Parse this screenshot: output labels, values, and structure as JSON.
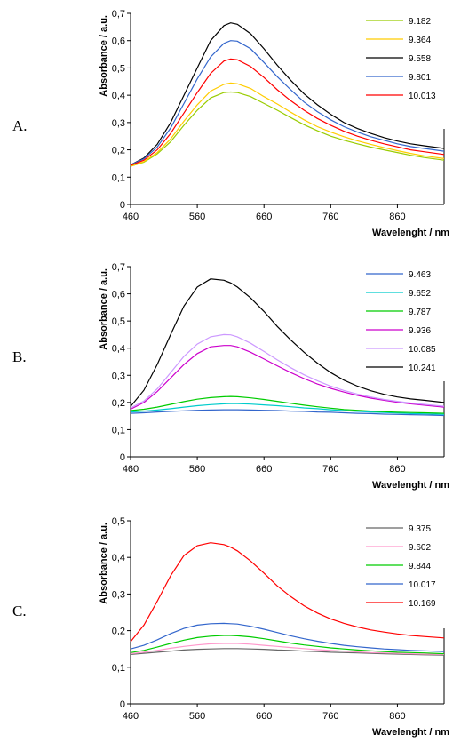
{
  "chart_data": [
    {
      "type": "line",
      "panel_label": "A.",
      "xlabel": "Wavelenght / nm",
      "ylabel": "Absorbance / a.u.",
      "xlim": [
        460,
        930
      ],
      "ylim": [
        0,
        0.7
      ],
      "x_ticks": [
        "460",
        "560",
        "660",
        "760",
        "860"
      ],
      "y_ticks": [
        "0",
        "0,1",
        "0,2",
        "0,3",
        "0,4",
        "0,5",
        "0,6",
        "0,7"
      ],
      "legend_position": "top-right",
      "x": [
        460,
        480,
        500,
        520,
        540,
        560,
        580,
        600,
        610,
        620,
        640,
        660,
        680,
        700,
        720,
        740,
        760,
        780,
        800,
        820,
        840,
        860,
        880,
        900,
        930
      ],
      "series": [
        {
          "name": "9.182",
          "color": "#99cc00",
          "values": [
            0.14,
            0.155,
            0.185,
            0.23,
            0.29,
            0.345,
            0.39,
            0.41,
            0.412,
            0.41,
            0.395,
            0.37,
            0.345,
            0.318,
            0.292,
            0.27,
            0.25,
            0.235,
            0.222,
            0.21,
            0.2,
            0.19,
            0.18,
            0.172,
            0.162
          ]
        },
        {
          "name": "9.364",
          "color": "#ffcc00",
          "values": [
            0.14,
            0.157,
            0.19,
            0.24,
            0.305,
            0.365,
            0.415,
            0.44,
            0.445,
            0.442,
            0.425,
            0.395,
            0.368,
            0.338,
            0.31,
            0.285,
            0.265,
            0.248,
            0.233,
            0.22,
            0.208,
            0.197,
            0.187,
            0.178,
            0.168
          ]
        },
        {
          "name": "9.558",
          "color": "#000000",
          "values": [
            0.145,
            0.17,
            0.22,
            0.3,
            0.4,
            0.5,
            0.6,
            0.655,
            0.665,
            0.66,
            0.625,
            0.57,
            0.51,
            0.455,
            0.405,
            0.365,
            0.33,
            0.3,
            0.278,
            0.26,
            0.245,
            0.232,
            0.222,
            0.215,
            0.205
          ]
        },
        {
          "name": "9.801",
          "color": "#3366cc",
          "values": [
            0.145,
            0.167,
            0.21,
            0.28,
            0.37,
            0.46,
            0.54,
            0.59,
            0.6,
            0.598,
            0.57,
            0.52,
            0.468,
            0.42,
            0.375,
            0.34,
            0.31,
            0.285,
            0.265,
            0.248,
            0.235,
            0.222,
            0.212,
            0.205,
            0.195
          ]
        },
        {
          "name": "10.013",
          "color": "#ff0000",
          "values": [
            0.143,
            0.162,
            0.2,
            0.26,
            0.335,
            0.41,
            0.48,
            0.525,
            0.533,
            0.53,
            0.505,
            0.465,
            0.42,
            0.38,
            0.345,
            0.315,
            0.29,
            0.268,
            0.25,
            0.235,
            0.222,
            0.211,
            0.2,
            0.193,
            0.183
          ]
        }
      ]
    },
    {
      "type": "line",
      "panel_label": "B.",
      "xlabel": "Wavelenght / nm",
      "ylabel": "Absorbance / a.u.",
      "xlim": [
        460,
        930
      ],
      "ylim": [
        0,
        0.7
      ],
      "x_ticks": [
        "460",
        "560",
        "660",
        "760",
        "860"
      ],
      "y_ticks": [
        "0",
        "0,1",
        "0,2",
        "0,3",
        "0,4",
        "0,5",
        "0,6",
        "0,7"
      ],
      "legend_position": "top-right",
      "x": [
        460,
        480,
        500,
        520,
        540,
        560,
        580,
        600,
        610,
        620,
        640,
        660,
        680,
        700,
        720,
        740,
        760,
        780,
        800,
        820,
        840,
        860,
        880,
        900,
        930
      ],
      "series": [
        {
          "name": "9.463",
          "color": "#3366cc",
          "values": [
            0.16,
            0.162,
            0.165,
            0.167,
            0.169,
            0.171,
            0.172,
            0.173,
            0.173,
            0.173,
            0.172,
            0.171,
            0.17,
            0.168,
            0.167,
            0.165,
            0.164,
            0.162,
            0.16,
            0.159,
            0.157,
            0.156,
            0.155,
            0.154,
            0.152
          ]
        },
        {
          "name": "9.652",
          "color": "#00cccc",
          "values": [
            0.165,
            0.168,
            0.172,
            0.177,
            0.183,
            0.188,
            0.192,
            0.195,
            0.196,
            0.196,
            0.194,
            0.191,
            0.188,
            0.184,
            0.18,
            0.177,
            0.173,
            0.17,
            0.167,
            0.165,
            0.163,
            0.161,
            0.159,
            0.158,
            0.156
          ]
        },
        {
          "name": "9.787",
          "color": "#00cc00",
          "values": [
            0.17,
            0.175,
            0.183,
            0.193,
            0.203,
            0.212,
            0.218,
            0.221,
            0.222,
            0.221,
            0.217,
            0.211,
            0.204,
            0.197,
            0.19,
            0.184,
            0.179,
            0.174,
            0.171,
            0.168,
            0.166,
            0.164,
            0.163,
            0.162,
            0.16
          ]
        },
        {
          "name": "9.936",
          "color": "#cc00cc",
          "values": [
            0.175,
            0.2,
            0.24,
            0.29,
            0.34,
            0.38,
            0.405,
            0.41,
            0.41,
            0.405,
            0.385,
            0.36,
            0.335,
            0.31,
            0.288,
            0.268,
            0.252,
            0.238,
            0.226,
            0.216,
            0.208,
            0.201,
            0.195,
            0.19,
            0.183
          ]
        },
        {
          "name": "10.085",
          "color": "#cc99ff",
          "values": [
            0.18,
            0.205,
            0.25,
            0.31,
            0.37,
            0.415,
            0.442,
            0.45,
            0.449,
            0.442,
            0.418,
            0.388,
            0.357,
            0.328,
            0.302,
            0.28,
            0.26,
            0.244,
            0.231,
            0.22,
            0.211,
            0.204,
            0.198,
            0.193,
            0.186
          ]
        },
        {
          "name": "10.241",
          "color": "#000000",
          "values": [
            0.185,
            0.245,
            0.34,
            0.45,
            0.555,
            0.625,
            0.655,
            0.65,
            0.64,
            0.625,
            0.585,
            0.535,
            0.48,
            0.43,
            0.385,
            0.345,
            0.31,
            0.282,
            0.26,
            0.243,
            0.23,
            0.22,
            0.213,
            0.208,
            0.2
          ]
        }
      ]
    },
    {
      "type": "line",
      "panel_label": "C.",
      "xlabel": "Wavelenght / nm",
      "ylabel": "Absorbance / a.u.",
      "xlim": [
        460,
        930
      ],
      "ylim": [
        0,
        0.5
      ],
      "x_ticks": [
        "460",
        "560",
        "660",
        "760",
        "860"
      ],
      "y_ticks": [
        "0",
        "0,1",
        "0,2",
        "0,3",
        "0,4",
        "0,5"
      ],
      "legend_position": "top-right",
      "x": [
        460,
        480,
        500,
        520,
        540,
        560,
        580,
        600,
        610,
        620,
        640,
        660,
        680,
        700,
        720,
        740,
        760,
        780,
        800,
        820,
        840,
        860,
        880,
        900,
        930
      ],
      "series": [
        {
          "name": "9.375",
          "color": "#666666",
          "values": [
            0.135,
            0.138,
            0.141,
            0.144,
            0.147,
            0.149,
            0.15,
            0.151,
            0.151,
            0.151,
            0.15,
            0.149,
            0.147,
            0.146,
            0.144,
            0.143,
            0.141,
            0.14,
            0.139,
            0.138,
            0.137,
            0.136,
            0.135,
            0.134,
            0.133
          ]
        },
        {
          "name": "9.602",
          "color": "#ff99cc",
          "values": [
            0.137,
            0.141,
            0.146,
            0.152,
            0.157,
            0.161,
            0.164,
            0.165,
            0.165,
            0.165,
            0.163,
            0.16,
            0.157,
            0.154,
            0.151,
            0.148,
            0.146,
            0.144,
            0.142,
            0.14,
            0.139,
            0.138,
            0.137,
            0.136,
            0.135
          ]
        },
        {
          "name": "9.844",
          "color": "#00cc00",
          "values": [
            0.14,
            0.146,
            0.155,
            0.165,
            0.174,
            0.181,
            0.185,
            0.187,
            0.187,
            0.186,
            0.183,
            0.178,
            0.172,
            0.166,
            0.161,
            0.157,
            0.153,
            0.15,
            0.147,
            0.145,
            0.143,
            0.141,
            0.14,
            0.139,
            0.137
          ]
        },
        {
          "name": "10.017",
          "color": "#3366cc",
          "values": [
            0.15,
            0.16,
            0.175,
            0.192,
            0.206,
            0.215,
            0.219,
            0.22,
            0.219,
            0.218,
            0.212,
            0.204,
            0.195,
            0.186,
            0.178,
            0.171,
            0.165,
            0.16,
            0.156,
            0.153,
            0.15,
            0.148,
            0.146,
            0.145,
            0.143
          ]
        },
        {
          "name": "10.169",
          "color": "#ff0000",
          "values": [
            0.17,
            0.215,
            0.28,
            0.35,
            0.405,
            0.432,
            0.44,
            0.435,
            0.428,
            0.418,
            0.39,
            0.357,
            0.322,
            0.293,
            0.268,
            0.248,
            0.232,
            0.22,
            0.21,
            0.202,
            0.196,
            0.191,
            0.187,
            0.184,
            0.18
          ]
        }
      ]
    }
  ]
}
